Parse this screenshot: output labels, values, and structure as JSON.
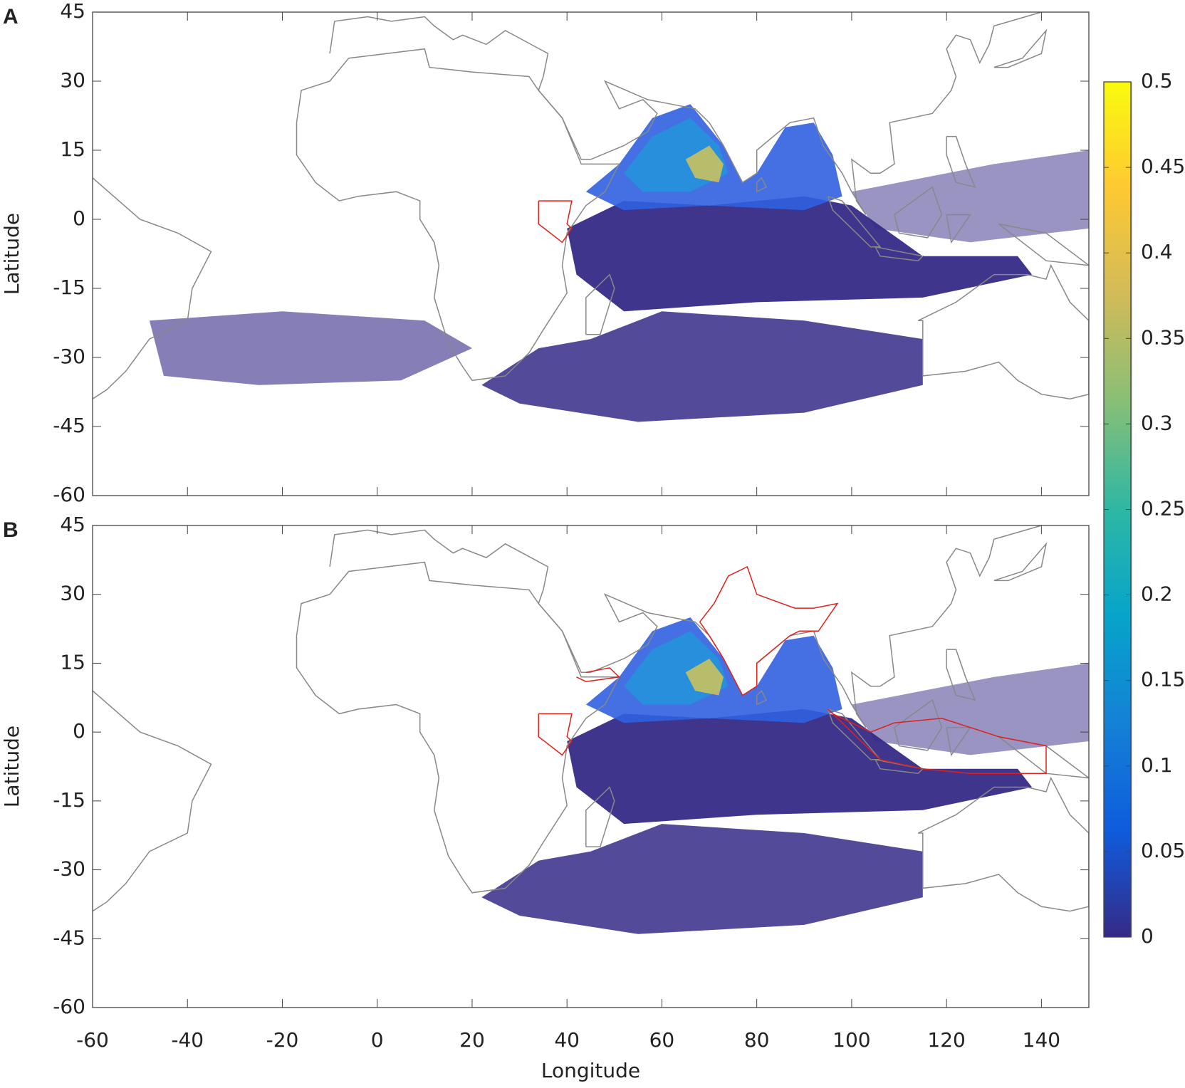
{
  "chart_data": [
    {
      "type": "map",
      "panel": "A",
      "ylabel": "Latitude",
      "xlim": [
        -60,
        150
      ],
      "xticks": [
        -60,
        -40,
        -20,
        0,
        20,
        40,
        60,
        80,
        100,
        120,
        140
      ],
      "ylim": [
        -60,
        45
      ],
      "yticks": [
        -60,
        -45,
        -30,
        -15,
        0,
        15,
        30,
        45
      ]
    },
    {
      "type": "map",
      "panel": "B",
      "ylabel": "Latitude",
      "xlabel": "Longitude",
      "xlim": [
        -60,
        150
      ],
      "xticks": [
        -60,
        -40,
        -20,
        0,
        20,
        40,
        60,
        80,
        100,
        120,
        140
      ],
      "ylim": [
        -60,
        45
      ],
      "yticks": [
        -60,
        -45,
        -30,
        -15,
        0,
        15,
        30,
        45
      ]
    },
    {
      "type": "colorbar",
      "lim": [
        0,
        0.5
      ],
      "ticks": [
        0,
        0.05,
        0.1,
        0.15,
        0.2,
        0.25,
        0.3,
        0.35,
        0.4,
        0.45,
        0.5
      ],
      "colors": [
        "#352a87",
        "#0f5cdd",
        "#1481d6",
        "#06a4ca",
        "#2eb7a4",
        "#87bf77",
        "#d1bb59",
        "#fec832",
        "#f9fb0e"
      ]
    }
  ]
}
